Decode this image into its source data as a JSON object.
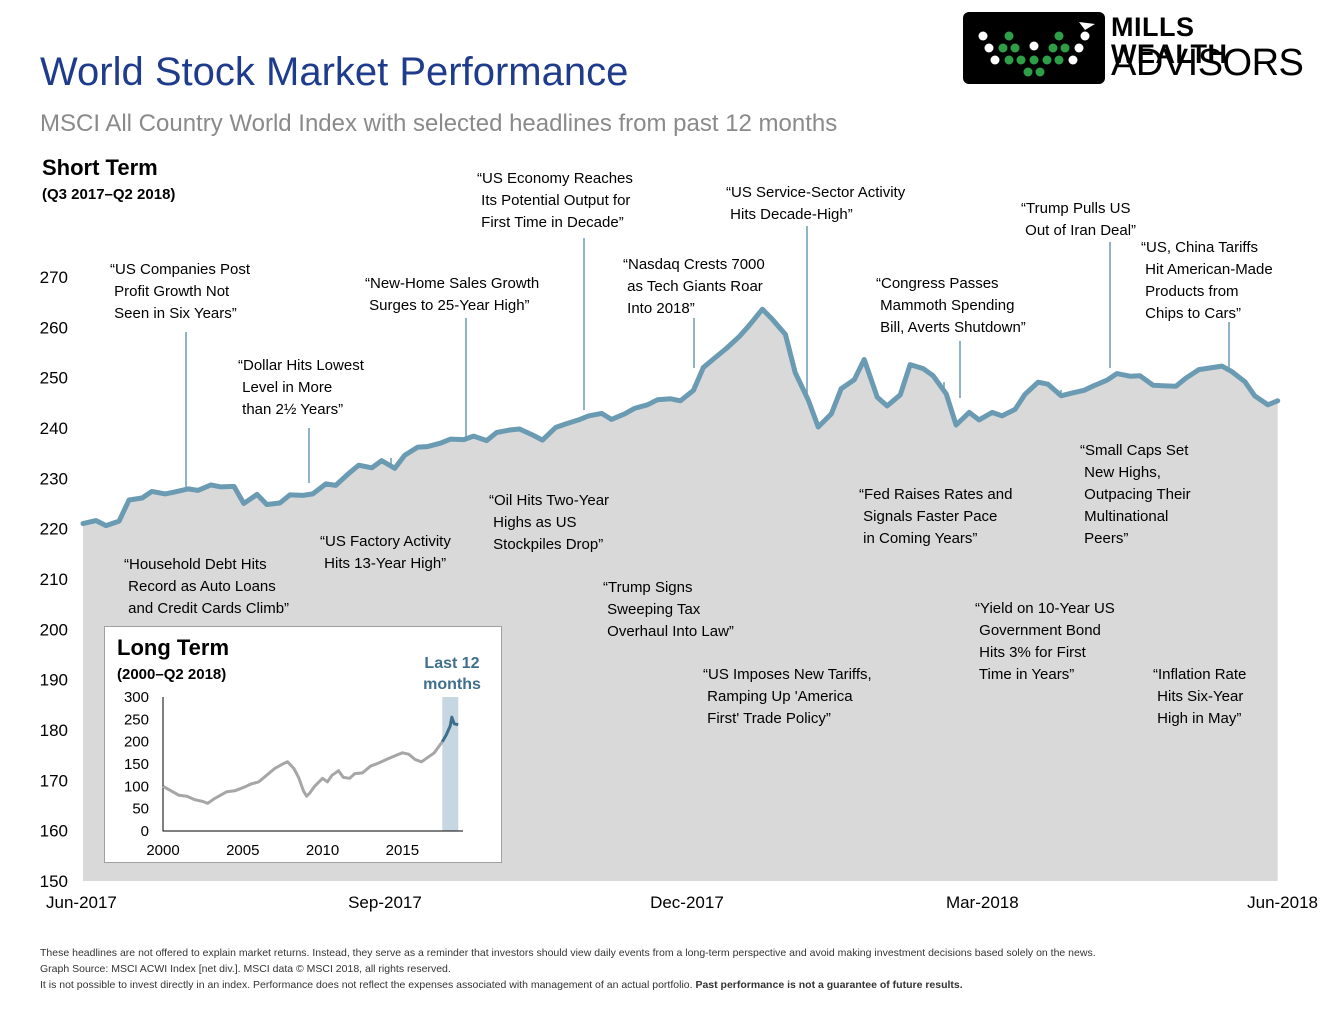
{
  "header": {
    "title": "World Stock Market Performance",
    "subtitle": "MSCI All Country World Index with selected headlines from past 12 months",
    "section_title": "Short Term",
    "section_range": "(Q3 2017–Q2 2018)"
  },
  "logo": {
    "line1": "MILLS WEALTH",
    "line2": "ADVISORS"
  },
  "colors": {
    "title": "#1f3b8c",
    "line": "#6a9bb2",
    "area": "#d9d9d9",
    "inset_line": "#a6a6a6",
    "inset_highlight": "#3f6f8c",
    "highlight_band": "#c6d7e1"
  },
  "chart_data": [
    {
      "type": "area",
      "title": "Short Term",
      "subtitle": "(Q3 2017–Q2 2018)",
      "xlabel": "",
      "ylabel": "",
      "ylim": [
        150,
        270
      ],
      "yticks": [
        150,
        160,
        170,
        180,
        190,
        200,
        210,
        220,
        230,
        240,
        250,
        260,
        270
      ],
      "xticks": [
        "Jun-2017",
        "Sep-2017",
        "Dec-2017",
        "Mar-2018",
        "Jun-2018"
      ],
      "x_range": [
        "2017-06-30",
        "2018-06-30"
      ],
      "grid": false,
      "series": [
        {
          "x": [
            "2017-06-30",
            "2017-07-04",
            "2017-07-07",
            "2017-07-11",
            "2017-07-14",
            "2017-07-18",
            "2017-07-21",
            "2017-07-25",
            "2017-07-28",
            "2017-08-01",
            "2017-08-04",
            "2017-08-08",
            "2017-08-11",
            "2017-08-15",
            "2017-08-18",
            "2017-08-22",
            "2017-08-25",
            "2017-08-29",
            "2017-09-01",
            "2017-09-05",
            "2017-09-08",
            "2017-09-12",
            "2017-09-15",
            "2017-09-19",
            "2017-09-22",
            "2017-09-26",
            "2017-09-29",
            "2017-10-03",
            "2017-10-06",
            "2017-10-10",
            "2017-10-13",
            "2017-10-17",
            "2017-10-20",
            "2017-10-24",
            "2017-10-27",
            "2017-10-31",
            "2017-11-03",
            "2017-11-07",
            "2017-11-10",
            "2017-11-14",
            "2017-11-17",
            "2017-11-21",
            "2017-11-24",
            "2017-11-28",
            "2017-12-01",
            "2017-12-05",
            "2017-12-08",
            "2017-12-12",
            "2017-12-15",
            "2017-12-19",
            "2017-12-22",
            "2017-12-26",
            "2017-12-29",
            "2018-01-02",
            "2018-01-05",
            "2018-01-09",
            "2018-01-12",
            "2018-01-16",
            "2018-01-19",
            "2018-01-23",
            "2018-01-26",
            "2018-01-30",
            "2018-02-02",
            "2018-02-06",
            "2018-02-09",
            "2018-02-13",
            "2018-02-16",
            "2018-02-20",
            "2018-02-23",
            "2018-02-27",
            "2018-03-02",
            "2018-03-06",
            "2018-03-09",
            "2018-03-13",
            "2018-03-16",
            "2018-03-20",
            "2018-03-23",
            "2018-03-27",
            "2018-03-30",
            "2018-04-03",
            "2018-04-06",
            "2018-04-10",
            "2018-04-13",
            "2018-04-17",
            "2018-04-20",
            "2018-04-24",
            "2018-04-27",
            "2018-05-01",
            "2018-05-04",
            "2018-05-08",
            "2018-05-11",
            "2018-05-15",
            "2018-05-18",
            "2018-05-22",
            "2018-05-25",
            "2018-05-29",
            "2018-06-01",
            "2018-06-05",
            "2018-06-08",
            "2018-06-12",
            "2018-06-15",
            "2018-06-19",
            "2018-06-22",
            "2018-06-26",
            "2018-06-29"
          ],
          "y": [
            221.0,
            221.6,
            220.6,
            221.5,
            225.7,
            226.1,
            227.4,
            226.9,
            227.3,
            227.9,
            227.6,
            228.7,
            228.3,
            228.4,
            225.0,
            226.8,
            224.8,
            225.1,
            226.7,
            226.6,
            226.9,
            228.9,
            228.6,
            231.0,
            232.6,
            232.1,
            233.5,
            232.0,
            234.6,
            236.2,
            236.3,
            237.0,
            237.8,
            237.7,
            238.4,
            237.5,
            239.1,
            239.6,
            239.8,
            238.6,
            237.6,
            240.1,
            240.8,
            241.6,
            242.4,
            242.9,
            241.7,
            242.8,
            243.9,
            244.6,
            245.6,
            245.8,
            245.4,
            247.5,
            252.0,
            254.2,
            255.8,
            258.2,
            260.4,
            263.6,
            261.6,
            258.6,
            251.0,
            245.5,
            240.2,
            242.8,
            247.8,
            249.6,
            253.6,
            246.1,
            244.4,
            246.6,
            252.6,
            251.8,
            250.4,
            246.8,
            240.6,
            243.1,
            241.6,
            243.1,
            242.4,
            243.7,
            246.7,
            249.1,
            248.7,
            246.4,
            246.9,
            247.5,
            248.4,
            249.5,
            250.8,
            250.3,
            250.4,
            248.5,
            248.4,
            248.3,
            249.9,
            251.6,
            251.9,
            252.3,
            251.2,
            249.2,
            246.4,
            244.6,
            245.4
          ]
        }
      ],
      "annotations": [
        "“US Companies Post\n Profit Growth Not\n Seen in Six Years”",
        "“Household Debt Hits\n Record as Auto Loans\n and Credit Cards Climb”",
        "“Dollar Hits Lowest\n Level in More\n than 2½ Years”",
        "“US Factory Activity\n Hits 13-Year High”",
        "“New-Home Sales Growth\n Surges to 25-Year High”",
        "“Oil Hits Two-Year\n Highs as US\n Stockpiles Drop”",
        "“US Economy Reaches\n Its Potential Output for\n First Time in Decade”",
        "“Trump Signs\n Sweeping Tax\n Overhaul Into Law”",
        "“Nasdaq Crests 7000\n as Tech Giants Roar\n Into 2018”",
        "“US Imposes New Tariffs,\n Ramping Up 'America\n First' Trade Policy”",
        "“US Service-Sector Activity\n Hits Decade-High”",
        "“Congress Passes\n Mammoth Spending\n Bill, Averts Shutdown”",
        "“Fed Raises Rates and\n Signals Faster Pace\n in Coming Years”",
        "“Yield on 10-Year US\n Government Bond\n Hits 3% for First\n Time in Years”",
        "“Trump Pulls US\n Out of Iran Deal”",
        "“Small Caps Set\n New Highs,\n Outpacing Their\n Multinational\n Peers”",
        "“US, China Tariffs\n Hit American-Made\n Products from\n Chips to Cars”",
        "“Inflation Rate\n Hits Six-Year\n High in May”"
      ]
    },
    {
      "type": "line",
      "title": "Long Term",
      "subtitle": "(2000–Q2 2018)",
      "ylim": [
        0,
        300
      ],
      "yticks": [
        0,
        50,
        100,
        150,
        200,
        250,
        300
      ],
      "xticks": [
        "2000",
        "2005",
        "2010",
        "2015"
      ],
      "x_range": [
        2000,
        2018.8
      ],
      "highlight_label": "Last 12\nmonths",
      "highlight_range": [
        2017.5,
        2018.5
      ],
      "series": [
        {
          "x": [
            2000.0,
            2000.5,
            2001.0,
            2001.5,
            2002.0,
            2002.5,
            2002.8,
            2003.2,
            2003.6,
            2004.0,
            2004.5,
            2005.0,
            2005.5,
            2006.0,
            2006.5,
            2007.0,
            2007.5,
            2007.8,
            2008.2,
            2008.5,
            2008.8,
            2009.0,
            2009.2,
            2009.5,
            2010.0,
            2010.3,
            2010.6,
            2011.0,
            2011.3,
            2011.7,
            2012.0,
            2012.5,
            2013.0,
            2013.5,
            2014.0,
            2014.5,
            2015.0,
            2015.4,
            2015.8,
            2016.2,
            2016.6,
            2017.0,
            2017.5
          ],
          "y": [
            100,
            90,
            80,
            78,
            70,
            66,
            62,
            72,
            80,
            88,
            90,
            97,
            105,
            110,
            125,
            140,
            150,
            155,
            140,
            120,
            90,
            78,
            85,
            100,
            118,
            110,
            125,
            135,
            120,
            118,
            128,
            130,
            145,
            152,
            160,
            168,
            175,
            172,
            160,
            155,
            165,
            175,
            200
          ]
        },
        {
          "name": "Last 12 months",
          "x": [
            2017.5,
            2017.75,
            2018.0,
            2018.1,
            2018.25,
            2018.5
          ],
          "y": [
            200,
            215,
            235,
            255,
            240,
            238
          ]
        }
      ]
    }
  ],
  "footer": {
    "line1": "These headlines are not offered to explain market returns. Instead, they serve as a reminder that investors should view daily events from a long-term perspective and avoid making investment decisions based solely on the news.",
    "line2": "Graph Source: MSCI ACWI Index [net div.]. MSCI data © MSCI 2018, all rights reserved.",
    "line3_regular": "It is not possible to invest directly in an index. Performance does not reflect the expenses associated with management of an actual portfolio. ",
    "line3_bold": "Past performance is not a guarantee of future results."
  }
}
